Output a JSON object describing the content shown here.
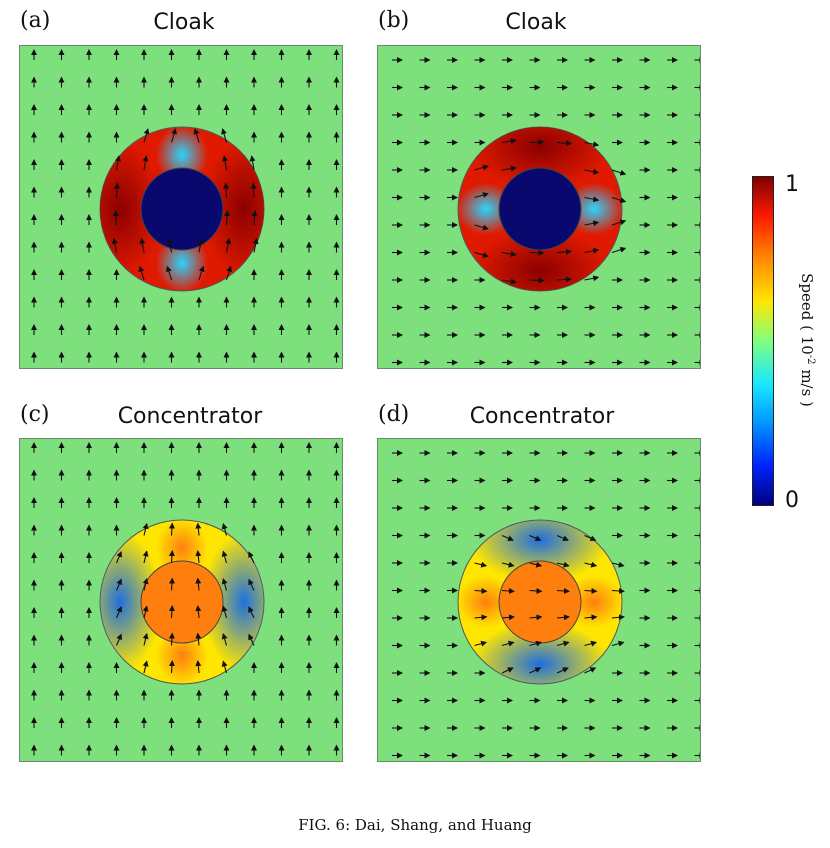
{
  "panels": [
    {
      "label": "(a)",
      "title": "Cloak",
      "type": "cloak",
      "flow": "vertical"
    },
    {
      "label": "(b)",
      "title": "Cloak",
      "type": "cloak",
      "flow": "horizontal"
    },
    {
      "label": "(c)",
      "title": "Concentrator",
      "type": "concentrator",
      "flow": "vertical"
    },
    {
      "label": "(d)",
      "title": "Concentrator",
      "type": "concentrator",
      "flow": "horizontal"
    }
  ],
  "colorbar": {
    "max_label": "1",
    "min_label": "0",
    "title": "Speed ( 10",
    "title_exp": "-2",
    "title_unit": " m/s )",
    "colors": {
      "background": "#7ee07c",
      "dark_red": "#8b0000",
      "red": "#e01a00",
      "orange": "#ff7f0e",
      "yellow": "#ffe600",
      "cyan": "#2ad4ff",
      "blue": "#1f6fe0",
      "navy": "#08086e"
    }
  },
  "caption": "FIG. 6: Dai, Shang, and Huang"
}
